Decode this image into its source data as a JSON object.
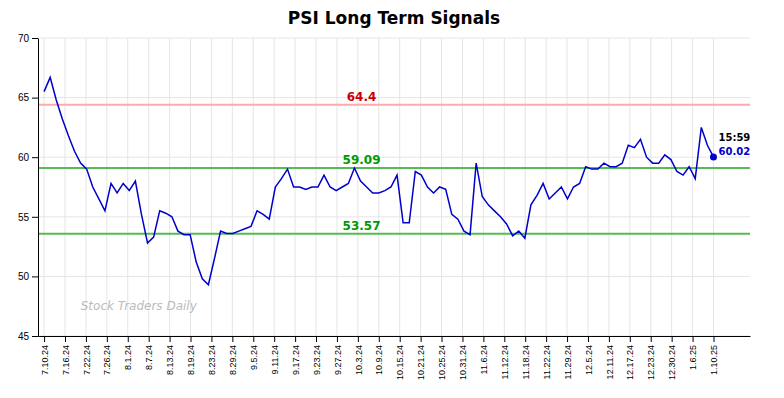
{
  "chart_data": {
    "type": "line",
    "title": "PSI Long Term Signals",
    "color": "#0000cc",
    "marker": "last",
    "values": [
      65.5,
      66.7,
      64.8,
      63.2,
      61.8,
      60.5,
      59.5,
      59.0,
      57.5,
      56.5,
      55.5,
      57.8,
      57.0,
      57.8,
      57.2,
      58.0,
      55.2,
      52.8,
      53.3,
      55.5,
      55.3,
      55.0,
      53.8,
      53.5,
      53.5,
      51.2,
      49.8,
      49.3,
      51.5,
      53.8,
      53.6,
      53.6,
      53.8,
      54.0,
      54.2,
      55.5,
      55.2,
      54.8,
      57.5,
      58.2,
      59.0,
      57.5,
      57.5,
      57.3,
      57.5,
      57.5,
      58.5,
      57.5,
      57.2,
      57.5,
      57.8,
      59.09,
      58.0,
      57.5,
      57.0,
      57.0,
      57.2,
      57.5,
      58.5,
      54.5,
      54.5,
      58.8,
      58.5,
      57.5,
      57.0,
      57.5,
      57.3,
      55.2,
      54.8,
      53.8,
      53.5,
      59.5,
      56.7,
      56.0,
      55.5,
      55.0,
      54.4,
      53.4,
      53.8,
      53.2,
      56.0,
      56.8,
      57.8,
      56.5,
      57.0,
      57.5,
      56.5,
      57.5,
      57.8,
      59.2,
      59.0,
      59.0,
      59.5,
      59.2,
      59.2,
      59.5,
      61.0,
      60.8,
      61.5,
      60.0,
      59.5,
      59.5,
      60.2,
      59.8,
      58.8,
      58.5,
      59.2,
      58.2,
      62.5,
      61.0,
      60.02
    ],
    "xlim": [
      -1,
      116
    ],
    "xticks": [
      {
        "value": 0,
        "label": "7.10.24"
      },
      {
        "value": 3.4375,
        "label": "7.16.24"
      },
      {
        "value": 6.875,
        "label": "7.22.24"
      },
      {
        "value": 10.3125,
        "label": "7.26.24"
      },
      {
        "value": 13.75,
        "label": "8.1.24"
      },
      {
        "value": 17.1875,
        "label": "8.7.24"
      },
      {
        "value": 20.625,
        "label": "8.13.24"
      },
      {
        "value": 24.0625,
        "label": "8.19.24"
      },
      {
        "value": 27.5,
        "label": "8.23.24"
      },
      {
        "value": 30.9375,
        "label": "8.29.24"
      },
      {
        "value": 34.375,
        "label": "9.5.24"
      },
      {
        "value": 37.8125,
        "label": "9.11.24"
      },
      {
        "value": 41.25,
        "label": "9.17.24"
      },
      {
        "value": 44.6875,
        "label": "9.23.24"
      },
      {
        "value": 48.125,
        "label": "9.27.24"
      },
      {
        "value": 51.5625,
        "label": "10.3.24"
      },
      {
        "value": 55,
        "label": "10.9.24"
      },
      {
        "value": 58.4375,
        "label": "10.15.24"
      },
      {
        "value": 61.875,
        "label": "10.21.24"
      },
      {
        "value": 65.3125,
        "label": "10.25.24"
      },
      {
        "value": 68.75,
        "label": "10.31.24"
      },
      {
        "value": 72.1875,
        "label": "11.6.24"
      },
      {
        "value": 75.625,
        "label": "11.12.24"
      },
      {
        "value": 79.0625,
        "label": "11.18.24"
      },
      {
        "value": 82.5,
        "label": "11.22.24"
      },
      {
        "value": 85.9375,
        "label": "11.29.24"
      },
      {
        "value": 89.375,
        "label": "12.5.24"
      },
      {
        "value": 92.8125,
        "label": "12.11.24"
      },
      {
        "value": 96.25,
        "label": "12.17.24"
      },
      {
        "value": 99.6875,
        "label": "12.23.24"
      },
      {
        "value": 103.125,
        "label": "12.30.24"
      },
      {
        "value": 106.5625,
        "label": "1.6.25"
      },
      {
        "value": 110,
        "label": "1.10.25"
      }
    ],
    "ylim": [
      45,
      70
    ],
    "yticks": [
      45,
      50,
      55,
      60,
      65,
      70
    ],
    "grid": true,
    "reference_lines": [
      {
        "value": 64.4,
        "label": "64.4",
        "color": "#ffaaaa",
        "label_color": "#cc0000"
      },
      {
        "value": 59.09,
        "label": "59.09",
        "color": "#55bb55",
        "label_color": "#009900"
      },
      {
        "value": 53.57,
        "label": "53.57",
        "color": "#55bb55",
        "label_color": "#009900"
      }
    ],
    "annotations": [
      {
        "text": "15:59",
        "color": "#000000"
      },
      {
        "text": "60.02",
        "color": "#0000cc"
      }
    ],
    "watermark": "Stock Traders Daily"
  }
}
